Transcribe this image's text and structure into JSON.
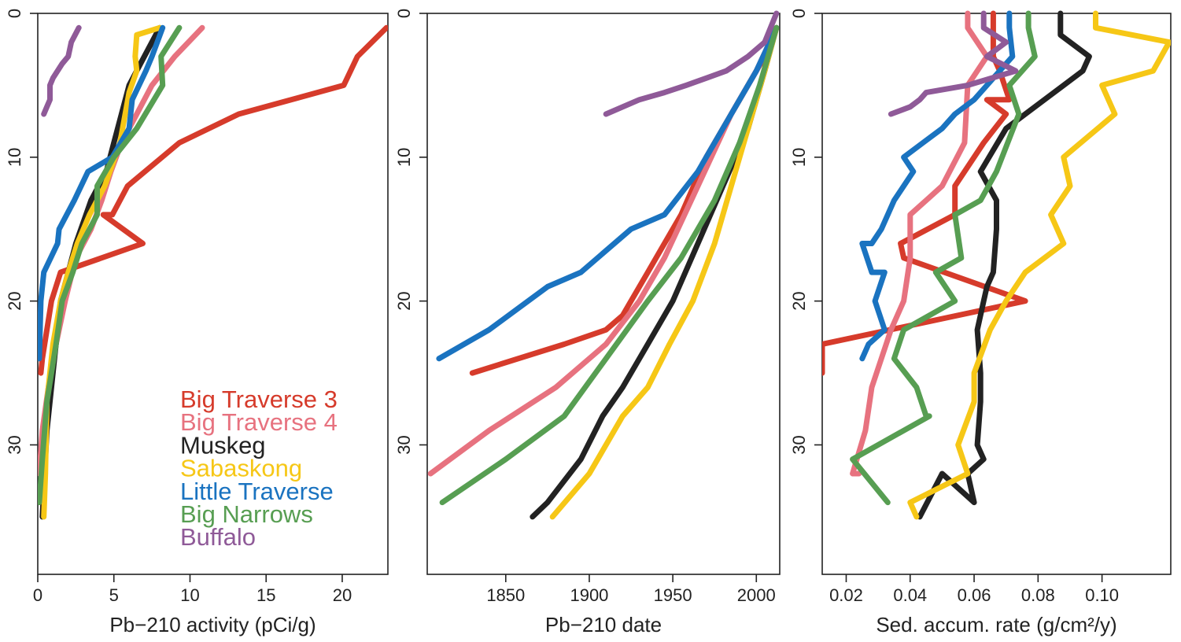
{
  "chart_data": [
    {
      "type": "line",
      "xlabel": "Pb−210 activity (pCi/g)",
      "ylabel": "",
      "x_ticks": [
        "0",
        "5",
        "10",
        "15",
        "20"
      ],
      "y_ticks": [
        "0",
        "10",
        "20",
        "30"
      ],
      "xlim": [
        0,
        23
      ],
      "ylim": [
        39,
        0
      ],
      "legend": {
        "placement": "bottom-right"
      },
      "series": [
        {
          "name": "Big Traverse 3",
          "color": "#d63b2b",
          "x": [
            22.9,
            21.0,
            20.1,
            13.2,
            9.3,
            5.9,
            4.9,
            4.3,
            6.9,
            1.5,
            0.9,
            0.6,
            0.3,
            0.2
          ],
          "y": [
            1,
            3,
            5,
            7,
            9,
            12,
            14,
            14,
            16,
            18,
            20,
            22,
            24,
            25
          ]
        },
        {
          "name": "Big Traverse 4",
          "color": "#e7727f",
          "x": [
            10.8,
            9.0,
            7.5,
            6.5,
            5.5,
            4.8,
            4.2,
            3.5,
            2.5,
            1.8,
            1.2,
            0.7,
            0.3,
            0.1
          ],
          "y": [
            1,
            3,
            5,
            7,
            9,
            11,
            13,
            15,
            17,
            20,
            23,
            26,
            29,
            32
          ]
        },
        {
          "name": "Muskeg",
          "color": "#222222",
          "x": [
            8.0,
            7.0,
            6.0,
            5.5,
            5.0,
            4.5,
            3.5,
            2.5,
            1.5,
            1.0,
            0.6,
            0.4,
            0.3
          ],
          "y": [
            1,
            3,
            5,
            7,
            9,
            11,
            13,
            16,
            20,
            25,
            29,
            33,
            35
          ]
        },
        {
          "name": "Sabaskong",
          "color": "#f6c716",
          "x": [
            8.0,
            6.5,
            6.4,
            6.5,
            6.0,
            5.4,
            4.4,
            3.4,
            2.6,
            2.0,
            1.5,
            1.0,
            0.6,
            0.5,
            0.4
          ],
          "y": [
            1,
            1.5,
            3,
            4,
            5.5,
            9,
            12,
            14,
            16,
            18,
            20,
            23,
            27,
            32,
            35
          ]
        },
        {
          "name": "Little Traverse",
          "color": "#1a73c0",
          "x": [
            8.2,
            7.5,
            7.1,
            6.2,
            6.0,
            4.9,
            3.3,
            2.4,
            1.4,
            1.3,
            0.4,
            0.2,
            0.1
          ],
          "y": [
            1,
            3,
            4,
            6,
            8,
            10,
            11,
            13,
            15,
            16,
            18,
            20,
            24
          ]
        },
        {
          "name": "Big Narrows",
          "color": "#579e52",
          "x": [
            9.3,
            8.1,
            8.2,
            6.5,
            5.0,
            3.9,
            3.9,
            2.9,
            2.3,
            1.6,
            1.2,
            0.6,
            0.3,
            0.1
          ],
          "y": [
            1,
            3,
            5,
            8,
            10,
            12,
            14,
            16,
            18,
            20,
            23,
            27,
            31,
            34
          ]
        },
        {
          "name": "Buffalo",
          "color": "#8f5a98",
          "x": [
            2.7,
            2.2,
            2.0,
            1.6,
            1.0,
            0.8,
            0.8,
            0.6,
            0.4
          ],
          "y": [
            1,
            2,
            3,
            3.5,
            4.5,
            5,
            6,
            6.5,
            7
          ]
        }
      ]
    },
    {
      "type": "line",
      "xlabel": "Pb−210 date",
      "ylabel": "",
      "x_ticks": [
        "1850",
        "1900",
        "1950",
        "2000"
      ],
      "y_ticks": [
        "0",
        "10",
        "20",
        "30"
      ],
      "xlim": [
        1803,
        2014
      ],
      "ylim": [
        39,
        0
      ],
      "series": [
        {
          "name": "Big Traverse 3",
          "color": "#d63b2b",
          "x": [
            2012,
            2005,
            1995,
            1985,
            1970,
            1955,
            1940,
            1935,
            1925,
            1920,
            1910,
            1885,
            1830
          ],
          "y": [
            1,
            3,
            5,
            7,
            10,
            14,
            17,
            18,
            20,
            21,
            22,
            23,
            25
          ]
        },
        {
          "name": "Big Traverse 4",
          "color": "#e7727f",
          "x": [
            2012,
            2000,
            1985,
            1965,
            1945,
            1930,
            1910,
            1880,
            1840,
            1805
          ],
          "y": [
            1,
            4,
            7,
            12,
            17,
            20,
            23,
            26,
            29,
            32
          ]
        },
        {
          "name": "Muskeg",
          "color": "#222222",
          "x": [
            2012,
            2005,
            1995,
            1980,
            1965,
            1950,
            1935,
            1920,
            1908,
            1895,
            1875,
            1866
          ],
          "y": [
            1,
            4,
            8,
            12,
            16,
            20,
            23,
            26,
            28,
            31,
            34,
            35
          ]
        },
        {
          "name": "Sabaskong",
          "color": "#f6c716",
          "x": [
            2012,
            2005,
            1995,
            1985,
            1975,
            1962,
            1948,
            1935,
            1920,
            1900,
            1878
          ],
          "y": [
            1,
            4,
            8,
            12,
            16,
            20,
            23,
            26,
            28,
            32,
            35
          ]
        },
        {
          "name": "Little Traverse",
          "color": "#1a73c0",
          "x": [
            2012,
            2000,
            1985,
            1965,
            1945,
            1925,
            1895,
            1875,
            1840,
            1810
          ],
          "y": [
            1,
            4,
            7,
            11,
            14,
            15,
            18,
            19,
            22,
            24
          ]
        },
        {
          "name": "Big Narrows",
          "color": "#579e52",
          "x": [
            2012,
            2002,
            1990,
            1975,
            1955,
            1935,
            1910,
            1885,
            1850,
            1812
          ],
          "y": [
            1,
            5,
            9,
            13,
            17,
            20,
            24,
            28,
            31,
            34
          ]
        },
        {
          "name": "Buffalo",
          "color": "#8f5a98",
          "x": [
            2012,
            2005,
            1995,
            1982,
            1970,
            1958,
            1945,
            1930,
            1910
          ],
          "y": [
            0,
            2,
            3,
            4,
            4.5,
            5,
            5.5,
            6,
            7
          ]
        }
      ]
    },
    {
      "type": "line",
      "xlabel": "Sed. accum. rate (g/cm²/y)",
      "ylabel": "",
      "x_ticks": [
        "0.02",
        "0.04",
        "0.06",
        "0.08",
        "0.10"
      ],
      "y_ticks": [
        "0",
        "10",
        "20",
        "30"
      ],
      "xlim": [
        0.0125,
        0.1215
      ],
      "ylim": [
        39,
        0
      ],
      "series": [
        {
          "name": "Big Traverse 3",
          "color": "#d63b2b",
          "x": [
            0.066,
            0.066,
            0.068,
            0.071,
            0.064,
            0.07,
            0.063,
            0.054,
            0.054,
            0.037,
            0.038,
            0.076,
            0.0125,
            0.0125
          ],
          "y": [
            0,
            3,
            4,
            6,
            6,
            7,
            9,
            12,
            14,
            16,
            17,
            20,
            23,
            25
          ]
        },
        {
          "name": "Big Traverse 4",
          "color": "#e7727f",
          "x": [
            0.058,
            0.058,
            0.064,
            0.058,
            0.057,
            0.05,
            0.045,
            0.04,
            0.04,
            0.038,
            0.034,
            0.028,
            0.026,
            0.022,
            0.024
          ],
          "y": [
            0,
            1,
            3,
            5,
            9,
            12,
            13,
            14,
            17,
            20,
            22,
            26,
            29,
            32,
            32
          ]
        },
        {
          "name": "Muskeg",
          "color": "#222222",
          "x": [
            0.087,
            0.087,
            0.096,
            0.094,
            0.088,
            0.07,
            0.062,
            0.067,
            0.067,
            0.066,
            0.064,
            0.063,
            0.061,
            0.062,
            0.062,
            0.061,
            0.063,
            0.058,
            0.06,
            0.05,
            0.043
          ],
          "y": [
            0,
            1.5,
            3,
            4,
            5,
            8,
            11,
            13,
            15,
            18,
            19,
            20,
            22,
            25,
            27,
            30,
            31,
            32,
            34,
            32,
            35
          ]
        },
        {
          "name": "Sabaskong",
          "color": "#f6c716",
          "x": [
            0.098,
            0.098,
            0.121,
            0.116,
            0.1,
            0.104,
            0.088,
            0.09,
            0.084,
            0.088,
            0.076,
            0.07,
            0.065,
            0.06,
            0.06,
            0.055,
            0.058,
            0.04,
            0.042
          ],
          "y": [
            0,
            1,
            2,
            4,
            5,
            7,
            10,
            12,
            14,
            16,
            18,
            20,
            22,
            25,
            27,
            30,
            32,
            34,
            35
          ]
        },
        {
          "name": "Little Traverse",
          "color": "#1a73c0",
          "x": [
            0.071,
            0.071,
            0.072,
            0.06,
            0.054,
            0.05,
            0.044,
            0.038,
            0.041,
            0.035,
            0.031,
            0.028,
            0.025,
            0.028,
            0.032,
            0.029,
            0.032,
            0.027,
            0.025
          ],
          "y": [
            0,
            1,
            3,
            6,
            7,
            8,
            9,
            10,
            11,
            13,
            15,
            16,
            16,
            18,
            18,
            20,
            22,
            23,
            24
          ]
        },
        {
          "name": "Big Narrows",
          "color": "#579e52",
          "x": [
            0.077,
            0.077,
            0.079,
            0.071,
            0.074,
            0.067,
            0.062,
            0.054,
            0.056,
            0.048,
            0.054,
            0.038,
            0.035,
            0.042,
            0.045,
            0.046,
            0.022,
            0.033
          ],
          "y": [
            0,
            1,
            3,
            5,
            7,
            11,
            13,
            14,
            17,
            18,
            20,
            22,
            24,
            26,
            28,
            28,
            31,
            34
          ]
        },
        {
          "name": "Buffalo",
          "color": "#8f5a98",
          "x": [
            0.063,
            0.063,
            0.07,
            0.064,
            0.073,
            0.058,
            0.045,
            0.043,
            0.04,
            0.034
          ],
          "y": [
            0,
            1,
            2,
            3,
            4,
            5,
            5.5,
            6,
            6.5,
            7
          ]
        }
      ]
    }
  ],
  "legend_entries": [
    "Big Traverse 3",
    "Big Traverse 4",
    "Muskeg",
    "Sabaskong",
    "Little Traverse",
    "Big Narrows",
    "Buffalo"
  ]
}
